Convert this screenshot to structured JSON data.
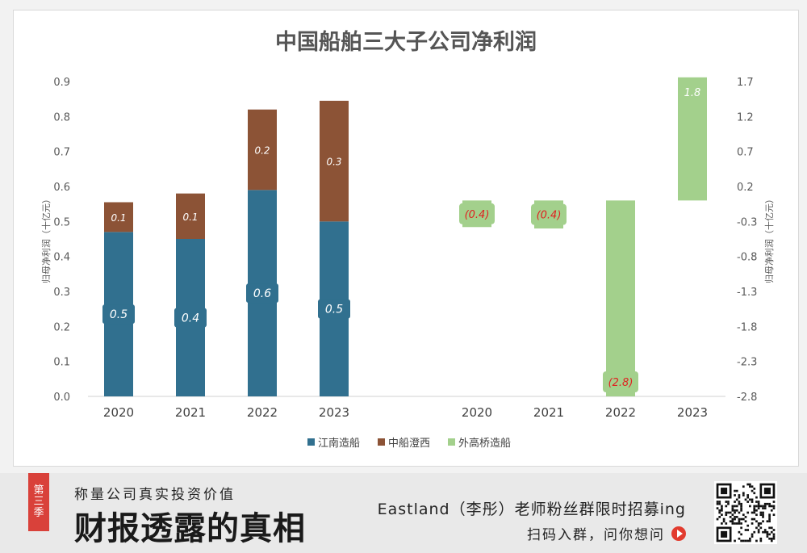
{
  "chart_data": {
    "type": "bar",
    "title": "中国船舶三大子公司净利润",
    "left_ylabel": "归母净利润（十亿元）",
    "right_ylabel": "归母净利润（十亿元）",
    "left_axis": {
      "min": 0.0,
      "max": 0.9,
      "ticks": [
        "0.0",
        "0.1",
        "0.2",
        "0.3",
        "0.4",
        "0.5",
        "0.6",
        "0.7",
        "0.8",
        "0.9"
      ]
    },
    "right_axis": {
      "min": -2.8,
      "max": 1.7,
      "ticks": [
        "-2.8",
        "-2.3",
        "-1.8",
        "-1.3",
        "-0.8",
        "-0.3",
        "0.2",
        "0.7",
        "1.2",
        "1.7"
      ]
    },
    "left_group": {
      "categories": [
        "2020",
        "2021",
        "2022",
        "2023"
      ],
      "series": [
        {
          "name": "江南造船",
          "color": "#31708f",
          "values": [
            0.47,
            0.45,
            0.59,
            0.5
          ],
          "labels": [
            "0.5",
            "0.4",
            "0.6",
            "0.5"
          ]
        },
        {
          "name": "中船澄西",
          "color": "#8c5336",
          "values": [
            0.085,
            0.13,
            0.23,
            0.345
          ],
          "labels": [
            "0.1",
            "0.1",
            "0.2",
            "0.3"
          ]
        }
      ]
    },
    "right_group": {
      "categories": [
        "2020",
        "2021",
        "2022",
        "2023"
      ],
      "series": [
        {
          "name": "外高桥造船",
          "color": "#a3d08c",
          "values": [
            -0.38,
            -0.4,
            -2.8,
            1.76
          ],
          "labels": [
            "(0.4)",
            "(0.4)",
            "(2.8)",
            "1.8"
          ]
        }
      ]
    },
    "legend": [
      {
        "name": "江南造船",
        "color": "#31708f"
      },
      {
        "name": "中船澄西",
        "color": "#8c5336"
      },
      {
        "name": "外高桥造船",
        "color": "#a3d08c"
      }
    ],
    "legend_position": "bottom",
    "grid": false
  },
  "banner": {
    "season_tag": [
      "第",
      "三",
      "季"
    ],
    "slogan": "称量公司真实投资价值",
    "big_title": "财报透露的真相",
    "recruit": "Eastland（李彤）老师粉丝群限时招募ing",
    "scan": "扫码入群，问你想问"
  }
}
